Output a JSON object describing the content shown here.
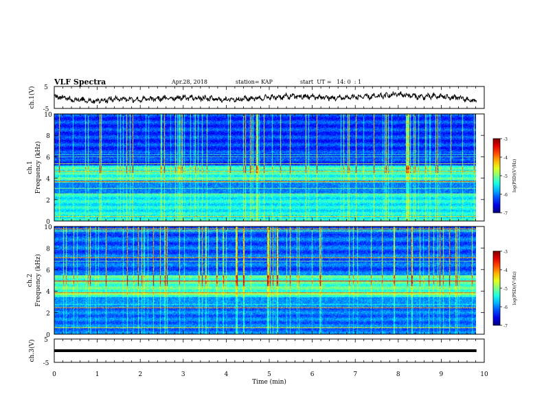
{
  "header": {
    "title": "VLF Spectra",
    "date": "Apr.28, 2018",
    "station": "station= KAP",
    "start_ut": "start  UT =   14: 0  : 1"
  },
  "chart_data": [
    {
      "type": "line",
      "panel": "ch1-waveform",
      "ylabel": "ch.1(V)",
      "ylim": [
        -5,
        5
      ],
      "yticks": [
        "5",
        "-5"
      ],
      "xlim": [
        0,
        10
      ],
      "series": [
        {
          "x": [
            0,
            0.5,
            1,
            1.5,
            2,
            2.5,
            3,
            3.5,
            4,
            4.5,
            5,
            5.5,
            6,
            6.5,
            7,
            7.5,
            8,
            8.5,
            9,
            9.5,
            9.82
          ],
          "values": [
            0.5,
            -1,
            -1.5,
            -0.5,
            -1,
            -0.5,
            0,
            -0.5,
            -1,
            -0.5,
            0,
            0.5,
            0.3,
            -0.3,
            0.2,
            0.4,
            1.5,
            0.3,
            0.5,
            -0.5,
            -1.8
          ]
        }
      ]
    },
    {
      "type": "heatmap",
      "panel": "ch1-spectrogram",
      "ylabel": "ch.1 Frequency (kHz)",
      "ylim": [
        0,
        10
      ],
      "yticks": [
        "0",
        "2",
        "4",
        "6",
        "8",
        "10"
      ],
      "xlim": [
        0,
        9.82
      ],
      "colorbar": {
        "label": "log(PSD)(V²/Hz)",
        "range": [
          -7,
          -3
        ],
        "ticks": [
          "-3",
          "-4",
          "-5",
          "-6",
          "-7"
        ]
      }
    },
    {
      "type": "heatmap",
      "panel": "ch2-spectrogram",
      "ylabel": "ch.2 Frequency (kHz)",
      "ylim": [
        0,
        10
      ],
      "yticks": [
        "0",
        "2",
        "4",
        "6",
        "8",
        "10"
      ],
      "xlim": [
        0,
        9.82
      ],
      "colorbar": {
        "label": "log(PSD)(V²/Hz)",
        "range": [
          -7,
          -3
        ],
        "ticks": [
          "-3",
          "-4",
          "-5",
          "-6",
          "-7"
        ]
      }
    },
    {
      "type": "line",
      "panel": "ch3-waveform",
      "ylabel": "ch.3(V)",
      "ylim": [
        -5,
        5
      ],
      "yticks": [
        "5",
        "-5"
      ],
      "xlim": [
        0,
        10
      ],
      "series": [
        {
          "x": [
            0,
            9.82
          ],
          "values": [
            0,
            0
          ]
        }
      ]
    }
  ],
  "xaxis": {
    "label": "Time (min)",
    "ticks": [
      "0",
      "1",
      "2",
      "3",
      "4",
      "5",
      "6",
      "7",
      "8",
      "9",
      "10"
    ]
  }
}
